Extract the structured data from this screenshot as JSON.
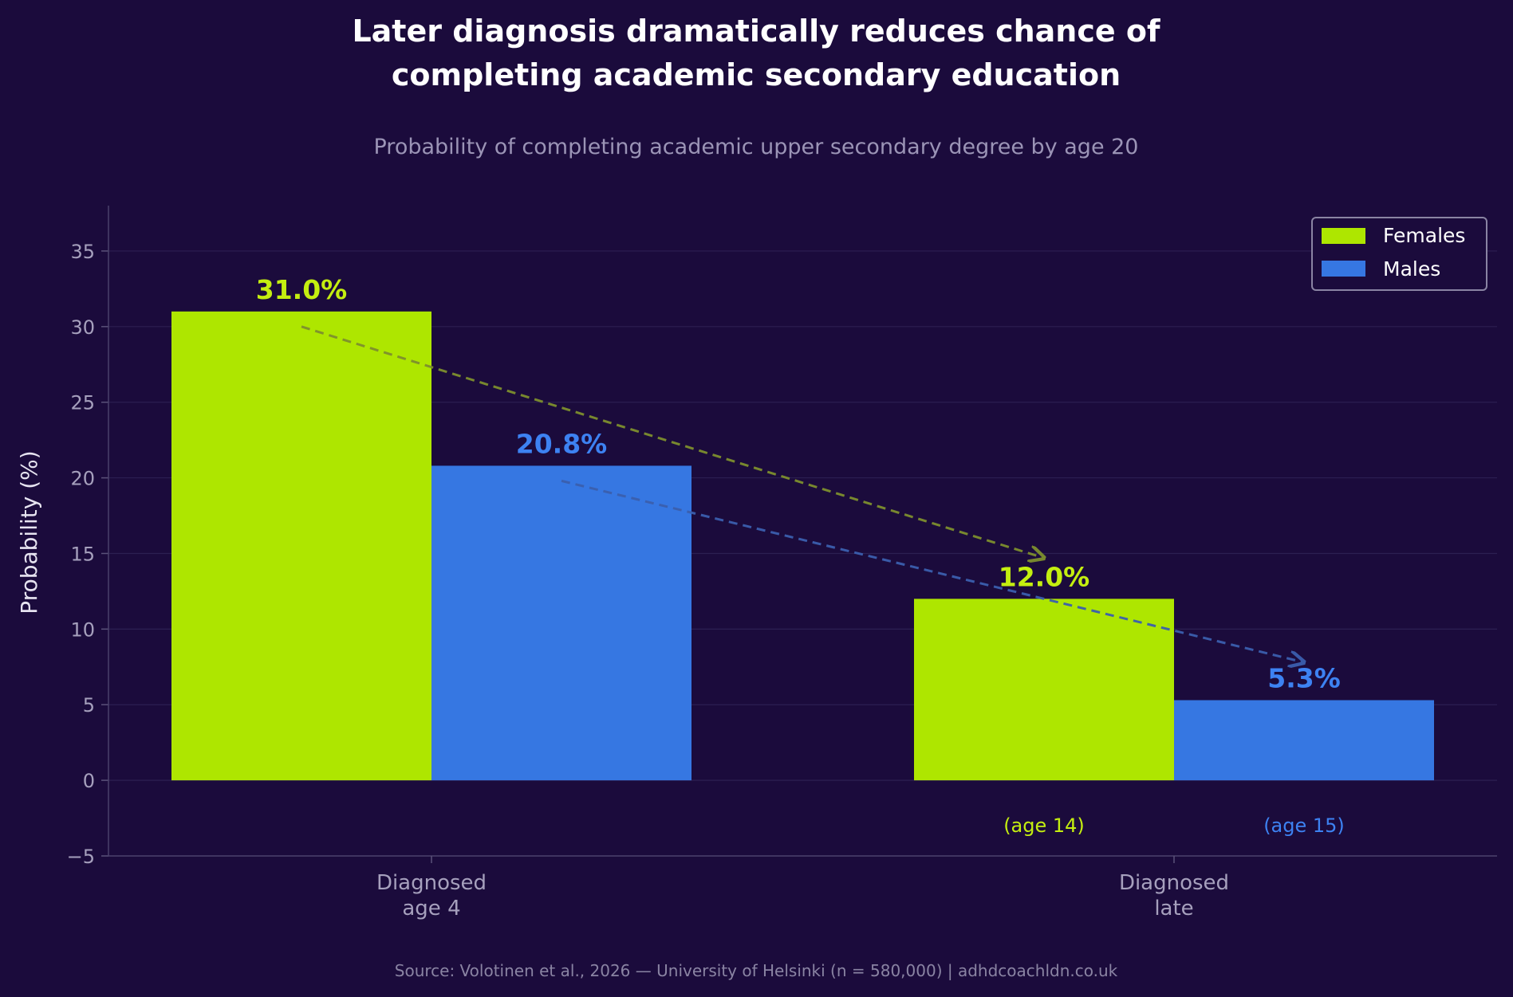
{
  "colors": {
    "background": "#1b0b3c",
    "females": "#aee600",
    "males": "#3677e2",
    "females_label": "#c4ee10",
    "males_label": "#3d82f2",
    "title": "#ffffff",
    "subtitle": "#9b94b6",
    "axis_text": "#a6a0bd",
    "grid": "#2c1f52"
  },
  "chart_data": {
    "type": "bar",
    "title_lines": [
      "Later diagnosis dramatically reduces chance of",
      "completing academic secondary education"
    ],
    "subtitle": "Probability of completing academic upper secondary degree by age 20",
    "categories": [
      [
        "Diagnosed",
        "age 4"
      ],
      [
        "Diagnosed",
        "late"
      ]
    ],
    "series": [
      {
        "name": "Females",
        "values": [
          31.0,
          12.0
        ],
        "labels": [
          "31.0%",
          "12.0%"
        ]
      },
      {
        "name": "Males",
        "values": [
          20.8,
          5.3
        ],
        "labels": [
          "20.8%",
          "5.3%"
        ]
      }
    ],
    "annotations": {
      "late_ages": [
        "(age 14)",
        "(age 15)"
      ],
      "trend_arrows": [
        {
          "series": "Females",
          "from": [
            0,
            30
          ],
          "to": [
            1,
            14.7
          ]
        },
        {
          "series": "Males",
          "from": [
            0,
            19.8
          ],
          "to": [
            1,
            7.8
          ]
        }
      ]
    },
    "ylabel": "Probability (%)",
    "xlabel": "",
    "ylim": [
      -5,
      38
    ],
    "yticks": [
      -5,
      0,
      5,
      10,
      15,
      20,
      25,
      30,
      35
    ],
    "ytick_labels": [
      "−5",
      "0",
      "5",
      "10",
      "15",
      "20",
      "25",
      "30",
      "35"
    ],
    "grid": true,
    "legend_position": "top-right",
    "source": "Source: Volotinen et al., 2026 — University of Helsinki (n = 580,000)  |  adhdcoachldn.co.uk"
  }
}
